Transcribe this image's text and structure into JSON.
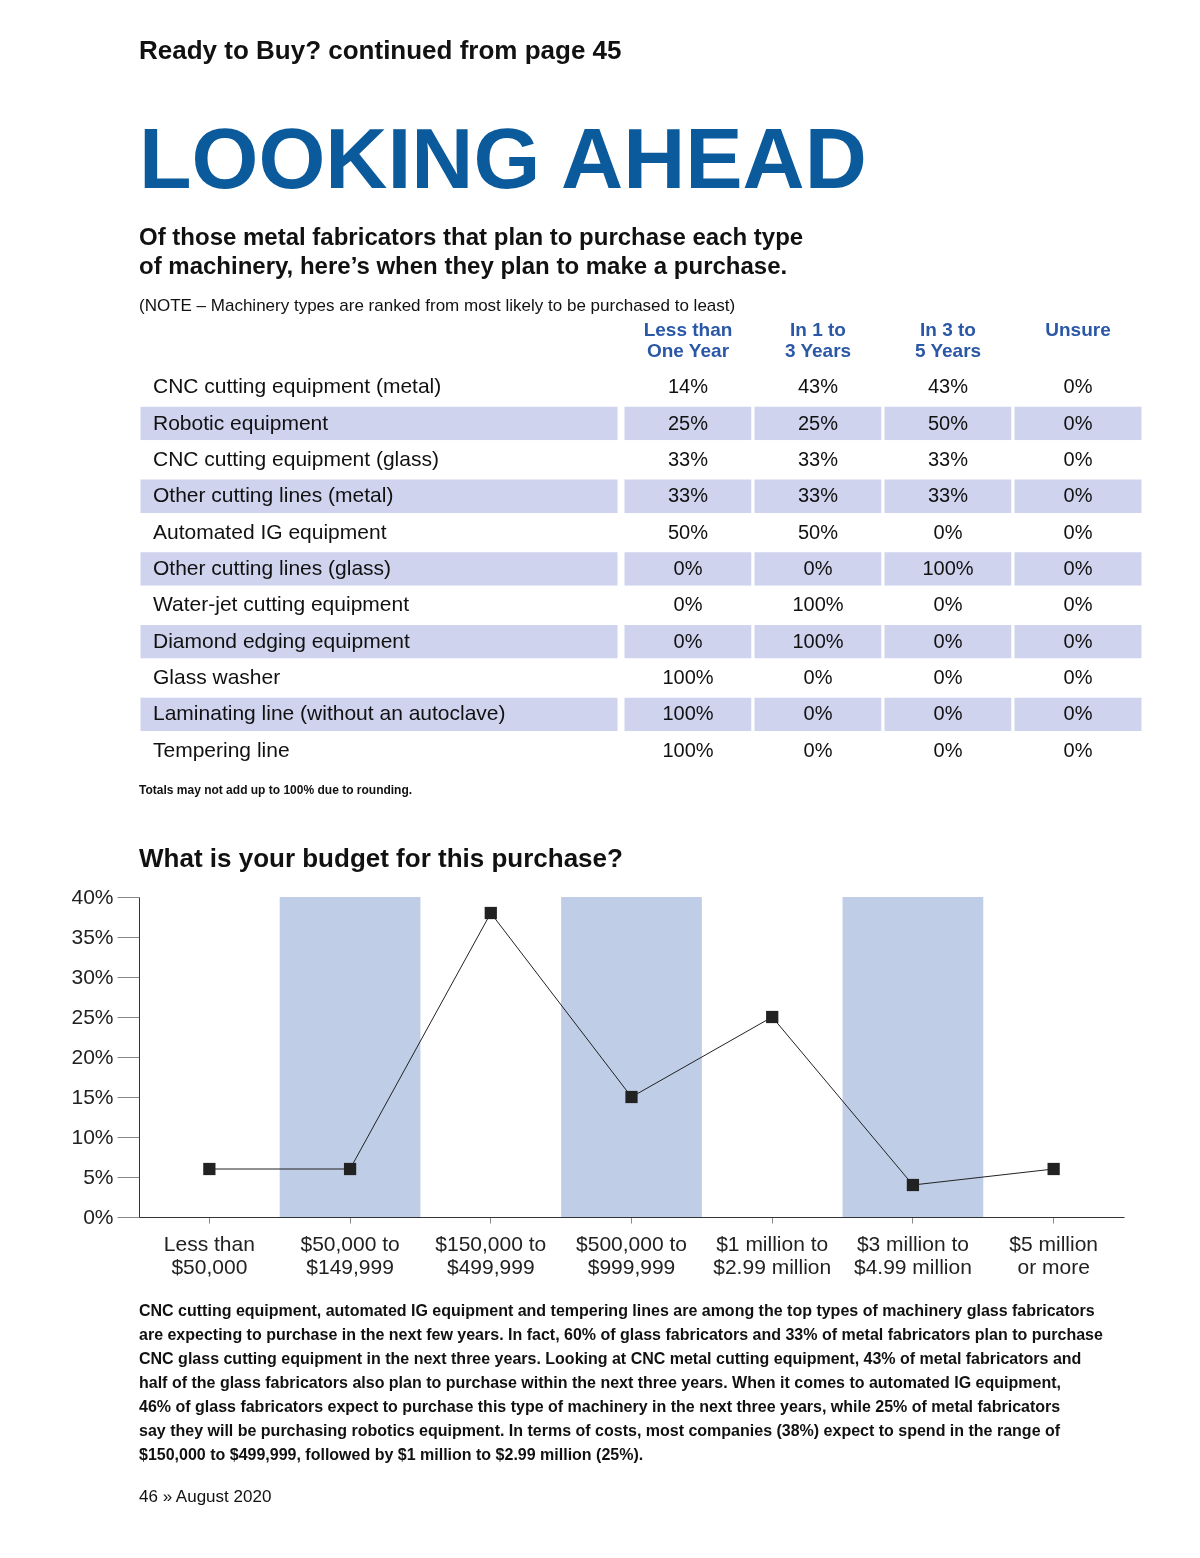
{
  "chart_data": [
    {
      "type": "heatmap",
      "title": "LOOKING AHEAD",
      "subtitle": "Of those metal fabricators that plan to purchase each type of machinery, here’s when they plan to make a purchase.",
      "annotations": [
        "Ready to Buy? continued from page 45",
        "(NOTE – Machinery types are ranked from most likely to be purchased to least)",
        "Totals may not add up to 100% due to rounding."
      ],
      "categories": [
        "Less than\nOne Year",
        "In 1 to\n3 Years",
        "In 3 to\n5 Years",
        "Unsure"
      ],
      "y_categories": [
        "CNC cutting equipment (metal)",
        "Robotic equipment",
        "CNC cutting equipment (glass)",
        "Other cutting lines (metal)",
        "Automated IG equipment",
        "Other cutting lines (glass)",
        "Water-jet cutting equipment",
        "Diamond edging equipment",
        "Glass washer",
        "Laminating line (without an autoclave)",
        "Tempering line"
      ],
      "cells": [
        [
          14,
          43,
          43,
          0
        ],
        [
          25,
          25,
          50,
          0
        ],
        [
          33,
          33,
          33,
          0
        ],
        [
          33,
          33,
          33,
          0
        ],
        [
          50,
          50,
          0,
          0
        ],
        [
          0,
          0,
          100,
          0
        ],
        [
          0,
          100,
          0,
          0
        ],
        [
          0,
          100,
          0,
          0
        ],
        [
          100,
          0,
          0,
          0
        ],
        [
          100,
          0,
          0,
          0
        ],
        [
          100,
          0,
          0,
          0
        ]
      ],
      "cell_labels": [
        [
          "14%",
          "43%",
          "43%",
          "0%"
        ],
        [
          "25%",
          "25%",
          "50%",
          "0%"
        ],
        [
          "33%",
          "33%",
          "33%",
          "0%"
        ],
        [
          "33%",
          "33%",
          "33%",
          "0%"
        ],
        [
          "50%",
          "50%",
          "0%",
          "0%"
        ],
        [
          "0%",
          "0%",
          "100%",
          "0%"
        ],
        [
          "0%",
          "100%",
          "0%",
          "0%"
        ],
        [
          "0%",
          "100%",
          "0%",
          "0%"
        ],
        [
          "100%",
          "0%",
          "0%",
          "0%"
        ],
        [
          "100%",
          "0%",
          "0%",
          "0%"
        ],
        [
          "100%",
          "0%",
          "0%",
          "0%"
        ]
      ]
    },
    {
      "type": "line",
      "title": "What is your budget for this purchase?",
      "categories": [
        "Less than\n$50,000",
        "$50,000 to\n$149,999",
        "$150,000 to\n$499,999",
        "$500,000 to\n$999,999",
        "$1 million to\n$2.99 million",
        "$3 million to\n$4.99 million",
        "$5 million\nor more"
      ],
      "series": [
        {
          "color": "#222222",
          "values": [
            6,
            6,
            38,
            15,
            25,
            4,
            6
          ]
        }
      ],
      "marker": "square",
      "grid": false,
      "ylim": [
        0,
        40
      ],
      "yticks": [
        {
          "value": 0,
          "label": "0%"
        },
        {
          "value": 5,
          "label": "5%"
        },
        {
          "value": 10,
          "label": "10%"
        },
        {
          "value": 15,
          "label": "15%"
        },
        {
          "value": 20,
          "label": "20%"
        },
        {
          "value": 25,
          "label": "25%"
        },
        {
          "value": 30,
          "label": "30%"
        },
        {
          "value": 35,
          "label": "35%"
        },
        {
          "value": 40,
          "label": "40%"
        }
      ],
      "bands": [
        {
          "axis": "x",
          "from": "$50,000 to\n$149,999",
          "to": "$50,000 to\n$149,999",
          "color": "#bfcde6"
        },
        {
          "axis": "x",
          "from": "$500,000 to\n$999,999",
          "to": "$500,000 to\n$999,999",
          "color": "#bfcde6"
        },
        {
          "axis": "x",
          "from": "$3 million to\n$4.99 million",
          "to": "$3 million to\n$4.99 million",
          "color": "#bfcde6"
        }
      ],
      "annotations": [
        "CNC cutting equipment, automated IG equipment and tempering lines are among the top types of machinery glass fabricators",
        "are expecting to purchase in the next few years. In fact, 60% of glass fabricators and 33% of metal fabricators plan to purchase",
        "CNC glass cutting equipment in the next three years. Looking at CNC metal cutting equipment, 43% of metal fabricators and",
        "half of the glass fabricators also plan to purchase within the next three years. When it comes to automated IG equipment,",
        "46% of glass fabricators expect to purchase this type of machinery in the next three years, while 25% of metal fabricators",
        "say they will be purchasing robotics equipment. In terms of costs, most companies (38%) expect to spend in the range of",
        "$150,000 to $499,999, followed by $1 million to $2.99 million (25%).",
        "46 » August 2020"
      ]
    }
  ]
}
